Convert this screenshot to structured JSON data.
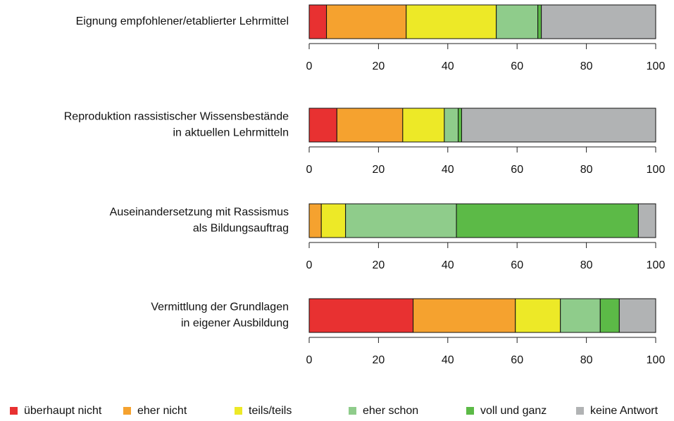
{
  "chart_data": {
    "type": "bar",
    "orientation": "horizontal",
    "stacked": true,
    "categories": [
      [
        "Eignung empfohlener/etablierter Lehrmittel"
      ],
      [
        "Reproduktion rassistischer Wissensbestände",
        "in aktuellen Lehrmitteln"
      ],
      [
        "Auseinandersetzung mit Rassismus",
        "als Bildungsauftrag"
      ],
      [
        "Vermittlung der Grundlagen",
        "in eigener Ausbildung"
      ]
    ],
    "series": [
      {
        "name": "überhaupt nicht",
        "color": "#e83131",
        "values": [
          5,
          8,
          0,
          30
        ]
      },
      {
        "name": "eher nicht",
        "color": "#f5a22f",
        "values": [
          23,
          19,
          3.5,
          29.5
        ]
      },
      {
        "name": "teils/teils",
        "color": "#ede927",
        "values": [
          26,
          12,
          7,
          13
        ]
      },
      {
        "name": "eher schon",
        "color": "#8fcc8b",
        "values": [
          12,
          4,
          32,
          11.5
        ]
      },
      {
        "name": "voll und ganz",
        "color": "#5cba47",
        "values": [
          1,
          1,
          52.5,
          5.5
        ]
      },
      {
        "name": "keine Antwort",
        "color": "#b1b3b4",
        "values": [
          33,
          56,
          5,
          10.5
        ]
      }
    ],
    "xlim": [
      0,
      100
    ],
    "xticks": [
      0,
      20,
      40,
      60,
      80,
      100
    ]
  }
}
